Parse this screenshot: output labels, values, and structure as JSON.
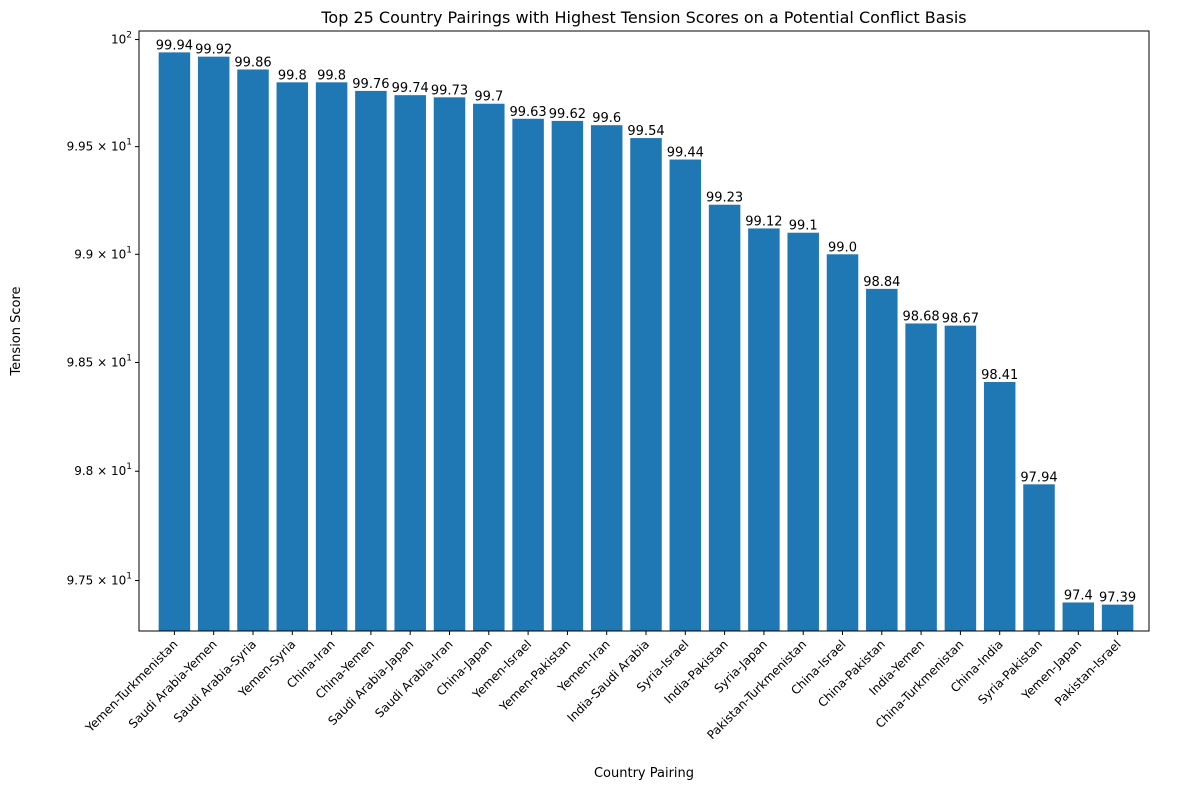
{
  "chart_data": {
    "type": "bar",
    "title": "Top 25 Country Pairings with Highest Tension Scores on a Potential Conflict Basis",
    "xlabel": "Country Pairing",
    "ylabel": "Tension Score",
    "yscale": "log",
    "ylim": [
      97.27,
      100.04
    ],
    "grid": false,
    "legend": "none",
    "bar_color": "#1f77b4",
    "categories": [
      "Yemen-Turkmenistan",
      "Saudi Arabia-Yemen",
      "Saudi Arabia-Syria",
      "Yemen-Syria",
      "China-Iran",
      "China-Yemen",
      "Saudi Arabia-Japan",
      "Saudi Arabia-Iran",
      "China-Japan",
      "Yemen-Israel",
      "Yemen-Pakistan",
      "Yemen-Iran",
      "India-Saudi Arabia",
      "Syria-Israel",
      "India-Pakistan",
      "Syria-Japan",
      "Pakistan-Turkmenistan",
      "China-Israel",
      "China-Pakistan",
      "India-Yemen",
      "China-Turkmenistan",
      "China-India",
      "Syria-Pakistan",
      "Yemen-Japan",
      "Pakistan-Israel"
    ],
    "values": [
      99.94,
      99.92,
      99.86,
      99.8,
      99.8,
      99.76,
      99.74,
      99.73,
      99.7,
      99.63,
      99.62,
      99.6,
      99.54,
      99.44,
      99.23,
      99.12,
      99.1,
      99.0,
      98.84,
      98.68,
      98.67,
      98.41,
      97.94,
      97.4,
      97.39
    ],
    "value_labels": [
      "99.94",
      "99.92",
      "99.86",
      "99.8",
      "99.8",
      "99.76",
      "99.74",
      "99.73",
      "99.7",
      "99.63",
      "99.62",
      "99.6",
      "99.54",
      "99.44",
      "99.23",
      "99.12",
      "99.1",
      "99.0",
      "98.84",
      "98.68",
      "98.67",
      "98.41",
      "97.94",
      "97.4",
      "97.39"
    ],
    "yticks": [
      {
        "value": 97.5,
        "mantissa": "9.75",
        "exponent": "1"
      },
      {
        "value": 98.0,
        "mantissa": "9.8",
        "exponent": "1"
      },
      {
        "value": 98.5,
        "mantissa": "9.85",
        "exponent": "1"
      },
      {
        "value": 99.0,
        "mantissa": "9.9",
        "exponent": "1"
      },
      {
        "value": 99.5,
        "mantissa": "9.95",
        "exponent": "1"
      },
      {
        "value": 100.0,
        "mantissa": "10",
        "exponent": "2"
      }
    ]
  }
}
